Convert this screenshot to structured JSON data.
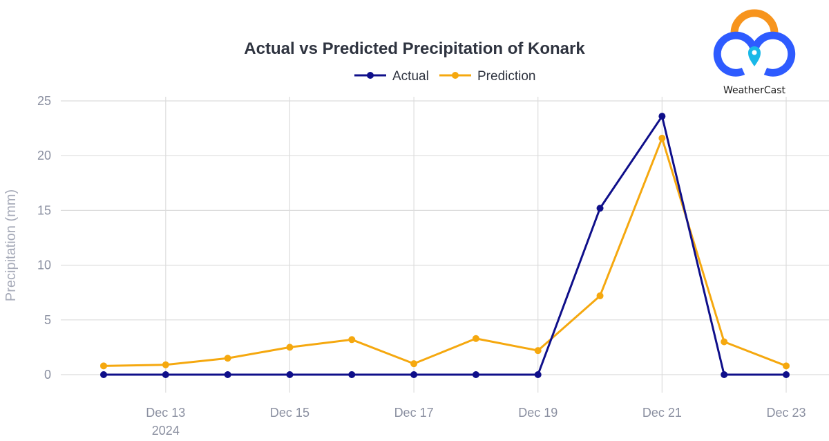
{
  "chart_data": {
    "type": "line",
    "title": "Actual vs Predicted Precipitation of Konark",
    "ylabel": "Precipitation (mm)",
    "xlabel": "",
    "x": [
      "2024-12-12",
      "2024-12-13",
      "2024-12-14",
      "2024-12-15",
      "2024-12-16",
      "2024-12-17",
      "2024-12-18",
      "2024-12-19",
      "2024-12-20",
      "2024-12-21",
      "2024-12-22",
      "2024-12-23"
    ],
    "xlim": [
      "2024-12-12",
      "2024-12-23"
    ],
    "x_ticks": [
      {
        "date": "2024-12-13",
        "label": "Dec 13",
        "sublabel": "2024"
      },
      {
        "date": "2024-12-15",
        "label": "Dec 15",
        "sublabel": ""
      },
      {
        "date": "2024-12-17",
        "label": "Dec 17",
        "sublabel": ""
      },
      {
        "date": "2024-12-19",
        "label": "Dec 19",
        "sublabel": ""
      },
      {
        "date": "2024-12-21",
        "label": "Dec 21",
        "sublabel": ""
      },
      {
        "date": "2024-12-23",
        "label": "Dec 23",
        "sublabel": ""
      }
    ],
    "ylim": [
      0,
      25
    ],
    "y_ticks": [
      0,
      5,
      10,
      15,
      20,
      25
    ],
    "grid": true,
    "legend_position": "top-center",
    "series": [
      {
        "name": "Actual",
        "color": "#0f0f8a",
        "values": [
          0,
          0,
          0,
          0,
          0,
          0,
          0,
          0,
          15.2,
          23.6,
          0,
          0
        ]
      },
      {
        "name": "Prediction",
        "color": "#f5a80f",
        "values": [
          0.8,
          0.9,
          1.5,
          2.5,
          3.2,
          1.0,
          3.3,
          2.2,
          7.2,
          21.6,
          3.0,
          0.8
        ]
      }
    ]
  },
  "logo": {
    "text": "WeatherCast",
    "colors": {
      "arc": "#f7941d",
      "cloud": "#2e5bff",
      "pin": "#19b8e8"
    }
  }
}
